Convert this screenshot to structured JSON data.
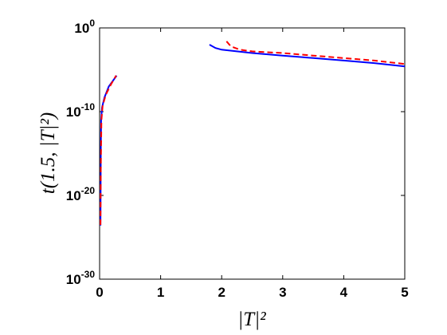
{
  "chart_data": {
    "type": "line",
    "y_scale": "log",
    "x_label": "|T|²",
    "y_label": "t(1.5, |T|²)",
    "xlim": [
      0,
      5
    ],
    "xticks": [
      0,
      1,
      2,
      3,
      4,
      5
    ],
    "ylim": [
      1e-30,
      1
    ],
    "yticks": [
      {
        "value": 1e-30,
        "label": "10^-30"
      },
      {
        "value": 1e-20,
        "label": "10^-20"
      },
      {
        "value": 1e-10,
        "label": "10^-10"
      },
      {
        "value": 1,
        "label": "10^0"
      }
    ],
    "series": [
      {
        "color": "#0000ff",
        "dash": false,
        "x": [
          0.015,
          0.02,
          0.025,
          0.04,
          0.08,
          0.15,
          0.28
        ],
        "values": [
          2.5e-24,
          1e-15,
          1e-11,
          3.2e-10,
          5e-09,
          1e-07,
          2e-06
        ]
      },
      {
        "color": "#0000ff",
        "dash": false,
        "x": [
          1.8,
          1.9,
          2.0,
          2.5,
          3,
          3.5,
          4,
          4.5,
          5
        ],
        "values": [
          0.01,
          0.004,
          0.0025,
          0.001,
          0.0005,
          0.00025,
          0.000126,
          6.3e-05,
          2.5e-05
        ]
      },
      {
        "color": "#ff0000",
        "dash": true,
        "x": [
          0.015,
          0.02,
          0.03,
          0.05,
          0.1,
          0.18,
          0.27
        ],
        "values": [
          3e-24,
          1e-17,
          1e-11,
          5e-10,
          1e-08,
          1.5e-07,
          2e-06
        ]
      },
      {
        "color": "#ff0000",
        "dash": true,
        "x": [
          2.08,
          2.15,
          2.3,
          2.5,
          3,
          3.5,
          4,
          4.5,
          5
        ],
        "values": [
          0.025,
          0.0063,
          0.0025,
          0.0016,
          0.001,
          0.0005,
          0.00025,
          0.000126,
          5e-05
        ]
      }
    ]
  }
}
